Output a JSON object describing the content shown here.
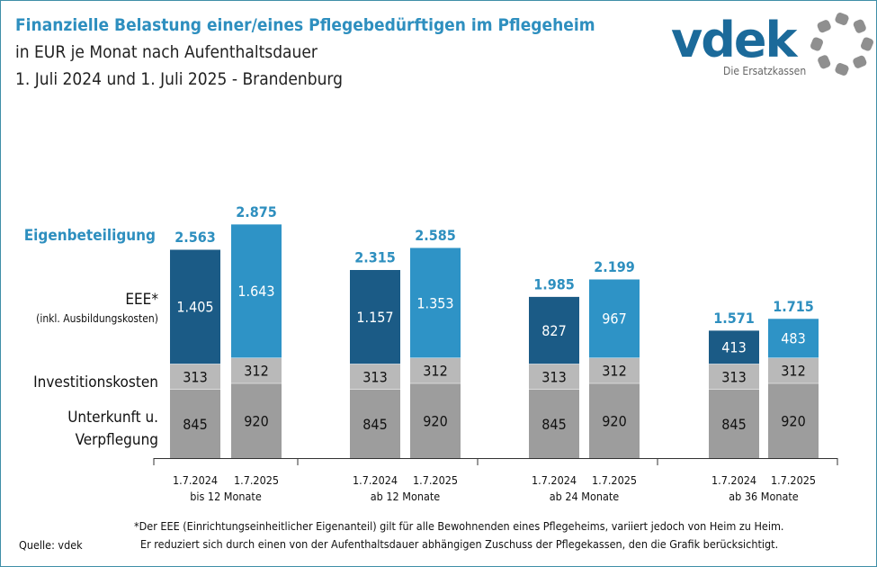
{
  "title": {
    "line1": "Finanzielle Belastung einer/eines Pflegebedürftigen im Pflegeheim",
    "line2": "in EUR je Monat nach Aufenthaltsdauer",
    "line3": "1. Juli 2024 und 1. Juli 2025 - Brandenburg"
  },
  "logo": {
    "text": "vdek",
    "tagline": "Die Ersatzkassen"
  },
  "colors": {
    "eee_2024": "#1b5b86",
    "eee_2025": "#2e93c6",
    "invest": "#b9b9b9",
    "unterkunft": "#9d9d9d",
    "total": "#2e8fbf"
  },
  "chart_data": {
    "type": "bar",
    "stacked": true,
    "categories": [
      "bis 12 Monate",
      "ab 12 Monate",
      "ab 24 Monate",
      "ab 36 Monate"
    ],
    "dates": [
      "1.7.2024",
      "1.7.2025"
    ],
    "segment_labels": {
      "unterkunft": "Unterkunft u. Verpflegung",
      "unterkunft_l1": "Unterkunft u.",
      "unterkunft_l2": "Verpflegung",
      "invest": "Investitionskosten",
      "eee": "EEE*",
      "eee_sub": "(inkl. Ausbildungskosten)",
      "total": "Eigenbeteiligung"
    },
    "bars": [
      {
        "category": "bis 12 Monate",
        "date": "1.7.2024",
        "unterkunft": 845,
        "invest": 313,
        "eee": 1405,
        "total": "2.563"
      },
      {
        "category": "bis 12 Monate",
        "date": "1.7.2025",
        "unterkunft": 920,
        "invest": 312,
        "eee": 1643,
        "total": "2.875"
      },
      {
        "category": "ab 12 Monate",
        "date": "1.7.2024",
        "unterkunft": 845,
        "invest": 313,
        "eee": 1157,
        "total": "2.315"
      },
      {
        "category": "ab 12 Monate",
        "date": "1.7.2025",
        "unterkunft": 920,
        "invest": 312,
        "eee": 1353,
        "total": "2.585"
      },
      {
        "category": "ab 24 Monate",
        "date": "1.7.2024",
        "unterkunft": 845,
        "invest": 313,
        "eee": 827,
        "total": "1.985"
      },
      {
        "category": "ab 24 Monate",
        "date": "1.7.2025",
        "unterkunft": 920,
        "invest": 312,
        "eee": 967,
        "total": "2.199"
      },
      {
        "category": "ab 36 Monate",
        "date": "1.7.2024",
        "unterkunft": 845,
        "invest": 313,
        "eee": 413,
        "total": "1.571"
      },
      {
        "category": "ab 36 Monate",
        "date": "1.7.2025",
        "unterkunft": 920,
        "invest": 312,
        "eee": 483,
        "total": "1.715"
      }
    ]
  },
  "footnote": {
    "line1": "*Der EEE (Einrichtungseinheitlicher  Eigenanteil) gilt für alle Bewohnenden  eines Pflegeheims,  variiert jedoch von Heim zu Heim.",
    "line2": "Er reduziert sich durch einen von der Aufenthaltsdauer abhängigen Zuschuss der Pflegekassen,  den die Grafik berücksichtigt."
  },
  "source": "Quelle: vdek"
}
